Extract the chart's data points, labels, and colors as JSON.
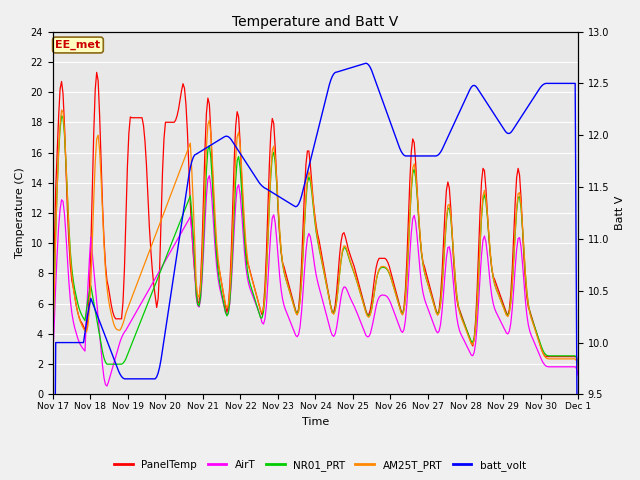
{
  "title": "Temperature and Batt V",
  "xlabel": "Time",
  "ylabel_left": "Temperature (C)",
  "ylabel_right": "Batt V",
  "ylim_left": [
    0,
    24
  ],
  "ylim_right": [
    9.5,
    13.0
  ],
  "yticks_left": [
    0,
    2,
    4,
    6,
    8,
    10,
    12,
    14,
    16,
    18,
    20,
    22,
    24
  ],
  "yticks_right": [
    9.5,
    10.0,
    10.5,
    11.0,
    11.5,
    12.0,
    12.5,
    13.0
  ],
  "xtick_labels": [
    "Nov 17",
    "Nov 18",
    "Nov 19",
    "Nov 20",
    "Nov 21",
    "Nov 22",
    "Nov 23",
    "Nov 24",
    "Nov 25",
    "Nov 26",
    "Nov 27",
    "Nov 28",
    "Nov 29",
    "Nov 30",
    "Dec 1"
  ],
  "annotation_text": "EE_met",
  "annotation_facecolor": "#FFFFC0",
  "annotation_edgecolor": "#8B6914",
  "annotation_textcolor": "#CC0000",
  "plot_bg_color": "#E8E8E8",
  "fig_bg_color": "#F0F0F0",
  "colors": {
    "PanelTemp": "#FF0000",
    "AirT": "#FF00FF",
    "NR01_PRT": "#00CC00",
    "AM25T_PRT": "#FF8800",
    "batt_volt": "#0000FF"
  },
  "legend_entries": [
    "PanelTemp",
    "AirT",
    "NR01_PRT",
    "AM25T_PRT",
    "batt_volt"
  ]
}
